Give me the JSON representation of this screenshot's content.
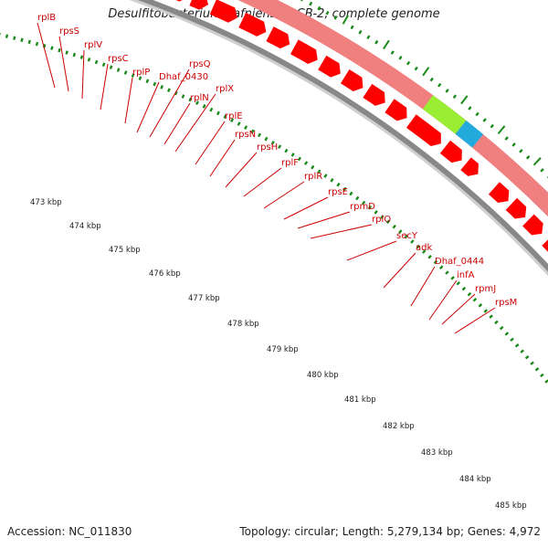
{
  "title": "Desulfitobacterium hafniense DCB-2, complete genome",
  "footer": {
    "accession": "Accession: NC_011830",
    "summary": "Topology: circular; Length: 5,279,134 bp; Genes: 4,972"
  },
  "colors": {
    "gene_label": "#cc0000",
    "cds_arrow": "#ff0000",
    "gene_bar": "#f08080",
    "backbone": "#888888",
    "tick": "#1a8a1a",
    "highlight_green": "#99ee33",
    "highlight_blue": "#22aadd",
    "highlight_orange": "#ff8800"
  },
  "scale_labels": [
    "473 kbp",
    "474 kbp",
    "475 kbp",
    "476 kbp",
    "477 kbp",
    "478 kbp",
    "479 kbp",
    "480 kbp",
    "481 kbp",
    "482 kbp",
    "483 kbp",
    "484 kbp",
    "485 kbp"
  ],
  "genes": [
    "rplB",
    "rpsS",
    "rplV",
    "rpsC",
    "rplP",
    "Dhaf_0430",
    "rpsQ",
    "rplN",
    "rplX",
    "rplE",
    "rpsN",
    "rpsH",
    "rplF",
    "rplR",
    "rpsE",
    "rpmD",
    "rplO",
    "secY",
    "adk",
    "Dhaf_0444",
    "infA",
    "rpmJ",
    "rpsM"
  ]
}
